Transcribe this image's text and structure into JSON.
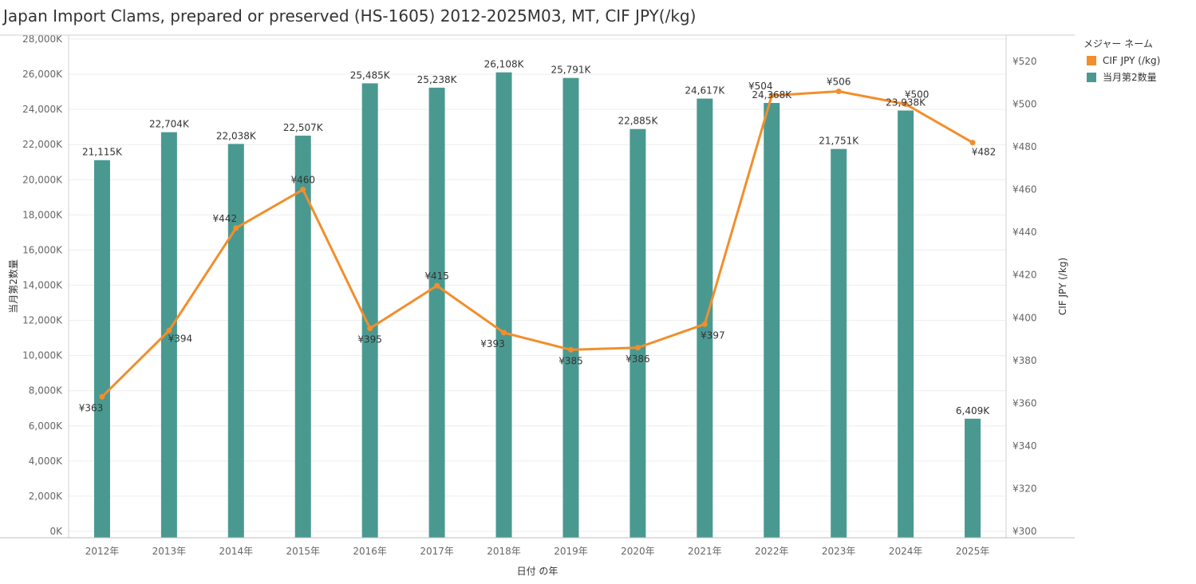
{
  "title": "Japan Import Clams, prepared or preserved (HS-1605) 2012-2025M03, MT, CIF JPY(/kg)",
  "legend": {
    "title": "メジャー ネーム",
    "items": [
      {
        "label": "CIF JPY (/kg)",
        "color": "#f28e2b"
      },
      {
        "label": "当月第2数量",
        "color": "#4a9991"
      }
    ]
  },
  "chart_data": {
    "type": "bar+line",
    "categories": [
      "2012年",
      "2013年",
      "2014年",
      "2015年",
      "2016年",
      "2017年",
      "2018年",
      "2019年",
      "2020年",
      "2021年",
      "2022年",
      "2023年",
      "2024年",
      "2025年"
    ],
    "xlabel": "日付 の年",
    "ylabel_left": "当月第2数量",
    "ylabel_right": "CIF JPY (/kg)",
    "ylim_left": [
      0,
      28000
    ],
    "ylim_right": [
      300,
      530
    ],
    "left_ticks": [
      "0K",
      "2,000K",
      "4,000K",
      "6,000K",
      "8,000K",
      "10,000K",
      "12,000K",
      "14,000K",
      "16,000K",
      "18,000K",
      "20,000K",
      "22,000K",
      "24,000K",
      "26,000K",
      "28,000K"
    ],
    "right_ticks": [
      "¥300",
      "¥320",
      "¥340",
      "¥360",
      "¥380",
      "¥400",
      "¥420",
      "¥440",
      "¥460",
      "¥480",
      "¥500",
      "¥520"
    ],
    "series": [
      {
        "name": "当月第2数量",
        "type": "bar",
        "color": "#4a9991",
        "values": [
          21115,
          22704,
          22038,
          22507,
          25485,
          25238,
          26108,
          25791,
          22885,
          24617,
          24368,
          21751,
          23938,
          6409
        ],
        "labels": [
          "21,115K",
          "22,704K",
          "22,038K",
          "22,507K",
          "25,485K",
          "25,238K",
          "26,108K",
          "25,791K",
          "22,885K",
          "24,617K",
          "24,368K",
          "21,751K",
          "23,938K",
          "6,409K"
        ]
      },
      {
        "name": "CIF JPY (/kg)",
        "type": "line",
        "color": "#f28e2b",
        "values": [
          363,
          394,
          442,
          460,
          395,
          415,
          393,
          385,
          386,
          397,
          504,
          506,
          500,
          482
        ],
        "labels": [
          "¥363",
          "¥394",
          "¥442",
          "¥460",
          "¥395",
          "¥415",
          "¥393",
          "¥385",
          "¥386",
          "¥397",
          "¥504",
          "¥506",
          "¥500",
          "¥482"
        ]
      }
    ]
  }
}
